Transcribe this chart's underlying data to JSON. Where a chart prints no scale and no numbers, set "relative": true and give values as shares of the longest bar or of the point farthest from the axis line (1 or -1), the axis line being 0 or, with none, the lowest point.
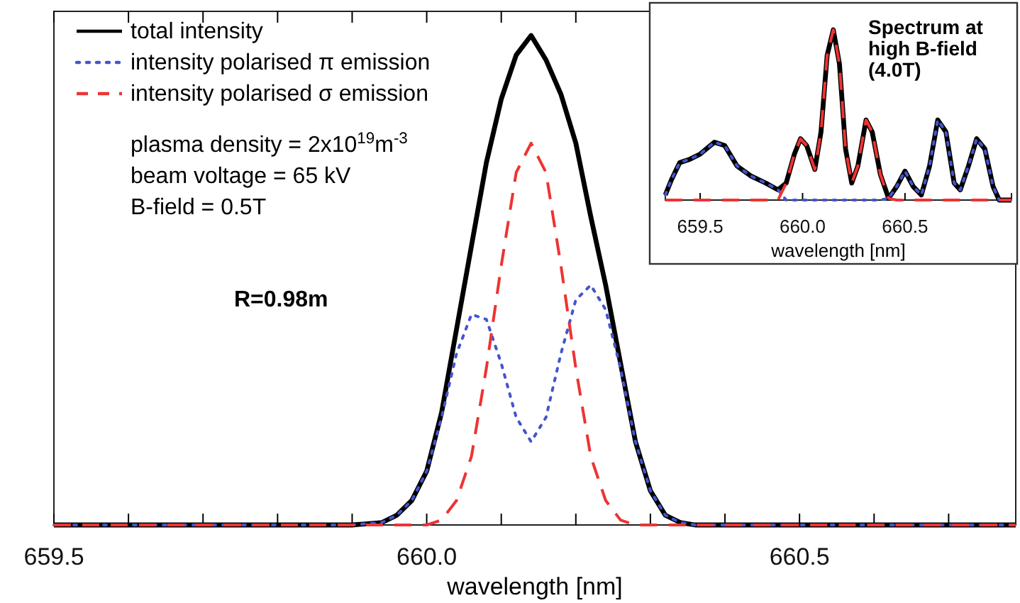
{
  "chart_data": [
    {
      "type": "line",
      "relative": true,
      "xlabel": "wavelength [nm]",
      "xlim": [
        659.5,
        660.79
      ],
      "xticks": [
        {
          "value": 659.5,
          "label": "659.5"
        },
        {
          "value": 659.6,
          "label": null
        },
        {
          "value": 659.7,
          "label": null
        },
        {
          "value": 659.8,
          "label": null
        },
        {
          "value": 659.9,
          "label": null
        },
        {
          "value": 660.0,
          "label": "660.0"
        },
        {
          "value": 660.1,
          "label": null
        },
        {
          "value": 660.2,
          "label": null
        },
        {
          "value": 660.3,
          "label": null
        },
        {
          "value": 660.4,
          "label": null
        },
        {
          "value": 660.5,
          "label": "660.5"
        },
        {
          "value": 660.6,
          "label": null
        },
        {
          "value": 660.7,
          "label": null
        }
      ],
      "legend": "top left",
      "grid": false,
      "annotations": [
        "plasma density = 2x10$^{19}$m$^{-3}$",
        "beam voltage = 65 kV",
        "B-field = 0.5T",
        "R=0.98m"
      ],
      "series": [
        {
          "name": "total intensity",
          "color": "#000000",
          "line_style": "solid",
          "x": [
            659.5,
            659.9,
            659.94,
            659.96,
            659.98,
            660.0,
            660.02,
            660.04,
            660.06,
            660.08,
            660.1,
            660.12,
            660.14,
            660.16,
            660.18,
            660.2,
            660.22,
            660.24,
            660.26,
            660.28,
            660.3,
            660.32,
            660.34,
            660.36,
            660.79
          ],
          "values": [
            0,
            0,
            0.005,
            0.02,
            0.05,
            0.11,
            0.23,
            0.4,
            0.57,
            0.74,
            0.87,
            0.96,
            1.0,
            0.95,
            0.88,
            0.78,
            0.63,
            0.49,
            0.33,
            0.17,
            0.07,
            0.02,
            0.005,
            0,
            0
          ]
        },
        {
          "name": "intensity polarised π emission",
          "color": "#4455cc",
          "line_style": "dotted",
          "x": [
            659.5,
            659.9,
            659.94,
            659.96,
            659.98,
            660.0,
            660.02,
            660.04,
            660.06,
            660.08,
            660.1,
            660.12,
            660.14,
            660.16,
            660.18,
            660.2,
            660.22,
            660.24,
            660.26,
            660.28,
            660.3,
            660.32,
            660.34,
            660.36,
            660.79
          ],
          "values": [
            0,
            0,
            0.005,
            0.02,
            0.05,
            0.11,
            0.22,
            0.35,
            0.43,
            0.42,
            0.33,
            0.22,
            0.17,
            0.22,
            0.35,
            0.46,
            0.49,
            0.44,
            0.32,
            0.17,
            0.07,
            0.02,
            0.005,
            0,
            0
          ]
        },
        {
          "name": "intensity polarised σ emission",
          "color": "#ee3333",
          "line_style": "dashed",
          "x": [
            659.5,
            660.0,
            660.02,
            660.04,
            660.06,
            660.08,
            660.1,
            660.12,
            660.14,
            660.16,
            660.18,
            660.2,
            660.22,
            660.24,
            660.26,
            660.28,
            660.79
          ],
          "values": [
            0,
            0,
            0.01,
            0.05,
            0.14,
            0.32,
            0.53,
            0.72,
            0.78,
            0.72,
            0.53,
            0.32,
            0.14,
            0.05,
            0.01,
            0,
            0
          ]
        }
      ]
    },
    {
      "type": "line",
      "relative": true,
      "title": "Spectrum at high B-field (4.0T)",
      "xlabel": "wavelength [nm]",
      "xlim": [
        659.33,
        661.02
      ],
      "xticks": [
        {
          "value": 659.5,
          "label": "659.5"
        },
        {
          "value": 660.0,
          "label": "660.0"
        },
        {
          "value": 660.5,
          "label": "660.5"
        }
      ],
      "legend": false,
      "grid": false,
      "series": [
        {
          "color": "#000000",
          "line_style": "solid",
          "x": [
            659.33,
            659.36,
            659.4,
            659.45,
            659.5,
            659.57,
            659.62,
            659.68,
            659.75,
            659.82,
            659.88,
            659.92,
            659.96,
            659.99,
            660.02,
            660.06,
            660.09,
            660.12,
            660.15,
            660.18,
            660.21,
            660.24,
            660.27,
            660.31,
            660.34,
            660.38,
            660.42,
            660.46,
            660.5,
            660.54,
            660.58,
            660.62,
            660.66,
            660.7,
            660.74,
            660.77,
            660.81,
            660.85,
            660.89,
            660.93,
            660.96,
            661.02
          ],
          "values": [
            0.03,
            0.12,
            0.22,
            0.24,
            0.27,
            0.34,
            0.32,
            0.2,
            0.14,
            0.1,
            0.06,
            0.1,
            0.27,
            0.36,
            0.32,
            0.18,
            0.4,
            0.85,
            1.0,
            0.8,
            0.3,
            0.1,
            0.2,
            0.47,
            0.4,
            0.15,
            0.01,
            0.08,
            0.17,
            0.08,
            0.03,
            0.2,
            0.47,
            0.4,
            0.1,
            0.06,
            0.2,
            0.36,
            0.3,
            0.08,
            0,
            0
          ]
        },
        {
          "color": "#4455cc",
          "line_style": "dotted",
          "x": [
            659.33,
            659.36,
            659.4,
            659.45,
            659.5,
            659.57,
            659.62,
            659.68,
            659.75,
            659.82,
            659.88,
            659.92,
            660.38,
            660.42,
            660.46,
            660.5,
            660.54,
            660.58,
            660.62,
            660.66,
            660.7,
            660.74,
            660.77,
            660.81,
            660.85,
            660.89,
            660.93,
            660.96,
            661.02
          ],
          "values": [
            0.03,
            0.12,
            0.22,
            0.24,
            0.27,
            0.34,
            0.32,
            0.2,
            0.14,
            0.1,
            0.06,
            0,
            0,
            0.01,
            0.08,
            0.17,
            0.08,
            0.03,
            0.2,
            0.47,
            0.4,
            0.1,
            0.06,
            0.2,
            0.36,
            0.3,
            0.08,
            0,
            0
          ]
        },
        {
          "color": "#ee3333",
          "line_style": "dashed",
          "x": [
            659.33,
            659.88,
            659.92,
            659.96,
            659.99,
            660.02,
            660.06,
            660.09,
            660.12,
            660.15,
            660.18,
            660.21,
            660.24,
            660.27,
            660.31,
            660.34,
            660.38,
            660.42,
            660.46,
            661.02
          ],
          "values": [
            0,
            0,
            0.1,
            0.27,
            0.36,
            0.32,
            0.18,
            0.4,
            0.85,
            1.0,
            0.8,
            0.3,
            0.1,
            0.2,
            0.47,
            0.4,
            0.15,
            0.01,
            0,
            0
          ]
        }
      ]
    }
  ]
}
